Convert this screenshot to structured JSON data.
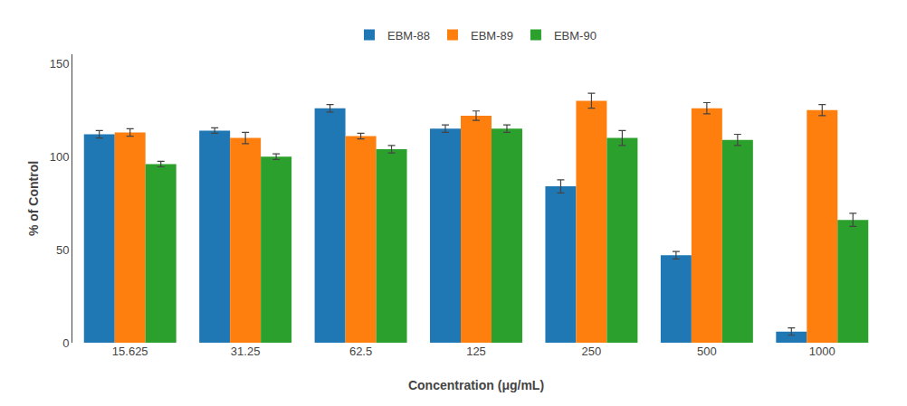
{
  "chart_data": {
    "type": "bar",
    "xlabel": "Concentration (μg/mL)",
    "ylabel": "% of Control",
    "categories": [
      "15.625",
      "31.25",
      "62.5",
      "125",
      "250",
      "500",
      "1000"
    ],
    "series": [
      {
        "name": "EBM-88",
        "values": [
          112,
          114,
          126,
          115,
          84,
          47,
          6
        ],
        "errors": [
          2.0,
          1.5,
          2.0,
          2.0,
          3.5,
          2.0,
          2.0
        ]
      },
      {
        "name": "EBM-89",
        "values": [
          113,
          110,
          111,
          122,
          130,
          126,
          125
        ],
        "errors": [
          2.0,
          3.0,
          1.5,
          2.5,
          4.0,
          3.0,
          3.0
        ]
      },
      {
        "name": "EBM-90",
        "values": [
          96,
          100,
          104,
          115,
          110,
          109,
          66
        ],
        "errors": [
          1.5,
          1.5,
          2.0,
          2.0,
          4.0,
          3.0,
          3.5
        ]
      }
    ],
    "ylim": [
      0,
      155
    ],
    "yticks": [
      0,
      50,
      100,
      150
    ],
    "grid": false,
    "legend": "top"
  }
}
